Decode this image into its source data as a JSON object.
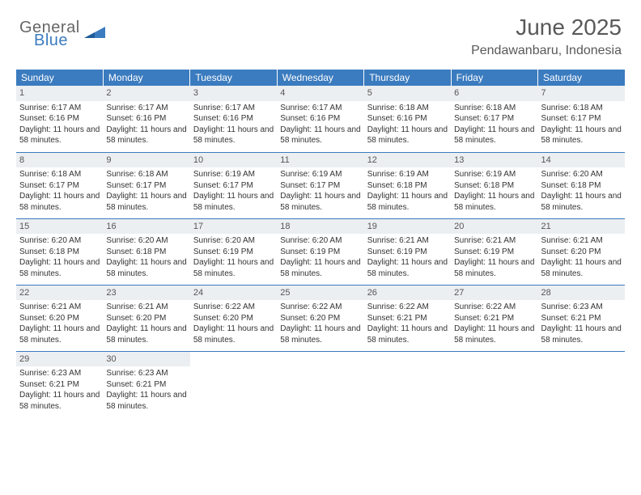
{
  "logo": {
    "general": "General",
    "blue": "Blue"
  },
  "title": "June 2025",
  "location": "Pendawanbaru, Indonesia",
  "colors": {
    "header_bg": "#3b7bbf",
    "header_text": "#ffffff",
    "daynum_bg": "#eceff1",
    "border": "#3b7bbf",
    "text": "#333333",
    "title_text": "#595959"
  },
  "weekdays": [
    "Sunday",
    "Monday",
    "Tuesday",
    "Wednesday",
    "Thursday",
    "Friday",
    "Saturday"
  ],
  "days": [
    {
      "n": 1,
      "sunrise": "6:17 AM",
      "sunset": "6:16 PM",
      "daylight": "11 hours and 58 minutes."
    },
    {
      "n": 2,
      "sunrise": "6:17 AM",
      "sunset": "6:16 PM",
      "daylight": "11 hours and 58 minutes."
    },
    {
      "n": 3,
      "sunrise": "6:17 AM",
      "sunset": "6:16 PM",
      "daylight": "11 hours and 58 minutes."
    },
    {
      "n": 4,
      "sunrise": "6:17 AM",
      "sunset": "6:16 PM",
      "daylight": "11 hours and 58 minutes."
    },
    {
      "n": 5,
      "sunrise": "6:18 AM",
      "sunset": "6:16 PM",
      "daylight": "11 hours and 58 minutes."
    },
    {
      "n": 6,
      "sunrise": "6:18 AM",
      "sunset": "6:17 PM",
      "daylight": "11 hours and 58 minutes."
    },
    {
      "n": 7,
      "sunrise": "6:18 AM",
      "sunset": "6:17 PM",
      "daylight": "11 hours and 58 minutes."
    },
    {
      "n": 8,
      "sunrise": "6:18 AM",
      "sunset": "6:17 PM",
      "daylight": "11 hours and 58 minutes."
    },
    {
      "n": 9,
      "sunrise": "6:18 AM",
      "sunset": "6:17 PM",
      "daylight": "11 hours and 58 minutes."
    },
    {
      "n": 10,
      "sunrise": "6:19 AM",
      "sunset": "6:17 PM",
      "daylight": "11 hours and 58 minutes."
    },
    {
      "n": 11,
      "sunrise": "6:19 AM",
      "sunset": "6:17 PM",
      "daylight": "11 hours and 58 minutes."
    },
    {
      "n": 12,
      "sunrise": "6:19 AM",
      "sunset": "6:18 PM",
      "daylight": "11 hours and 58 minutes."
    },
    {
      "n": 13,
      "sunrise": "6:19 AM",
      "sunset": "6:18 PM",
      "daylight": "11 hours and 58 minutes."
    },
    {
      "n": 14,
      "sunrise": "6:20 AM",
      "sunset": "6:18 PM",
      "daylight": "11 hours and 58 minutes."
    },
    {
      "n": 15,
      "sunrise": "6:20 AM",
      "sunset": "6:18 PM",
      "daylight": "11 hours and 58 minutes."
    },
    {
      "n": 16,
      "sunrise": "6:20 AM",
      "sunset": "6:18 PM",
      "daylight": "11 hours and 58 minutes."
    },
    {
      "n": 17,
      "sunrise": "6:20 AM",
      "sunset": "6:19 PM",
      "daylight": "11 hours and 58 minutes."
    },
    {
      "n": 18,
      "sunrise": "6:20 AM",
      "sunset": "6:19 PM",
      "daylight": "11 hours and 58 minutes."
    },
    {
      "n": 19,
      "sunrise": "6:21 AM",
      "sunset": "6:19 PM",
      "daylight": "11 hours and 58 minutes."
    },
    {
      "n": 20,
      "sunrise": "6:21 AM",
      "sunset": "6:19 PM",
      "daylight": "11 hours and 58 minutes."
    },
    {
      "n": 21,
      "sunrise": "6:21 AM",
      "sunset": "6:20 PM",
      "daylight": "11 hours and 58 minutes."
    },
    {
      "n": 22,
      "sunrise": "6:21 AM",
      "sunset": "6:20 PM",
      "daylight": "11 hours and 58 minutes."
    },
    {
      "n": 23,
      "sunrise": "6:21 AM",
      "sunset": "6:20 PM",
      "daylight": "11 hours and 58 minutes."
    },
    {
      "n": 24,
      "sunrise": "6:22 AM",
      "sunset": "6:20 PM",
      "daylight": "11 hours and 58 minutes."
    },
    {
      "n": 25,
      "sunrise": "6:22 AM",
      "sunset": "6:20 PM",
      "daylight": "11 hours and 58 minutes."
    },
    {
      "n": 26,
      "sunrise": "6:22 AM",
      "sunset": "6:21 PM",
      "daylight": "11 hours and 58 minutes."
    },
    {
      "n": 27,
      "sunrise": "6:22 AM",
      "sunset": "6:21 PM",
      "daylight": "11 hours and 58 minutes."
    },
    {
      "n": 28,
      "sunrise": "6:23 AM",
      "sunset": "6:21 PM",
      "daylight": "11 hours and 58 minutes."
    },
    {
      "n": 29,
      "sunrise": "6:23 AM",
      "sunset": "6:21 PM",
      "daylight": "11 hours and 58 minutes."
    },
    {
      "n": 30,
      "sunrise": "6:23 AM",
      "sunset": "6:21 PM",
      "daylight": "11 hours and 58 minutes."
    }
  ],
  "labels": {
    "sunrise": "Sunrise:",
    "sunset": "Sunset:",
    "daylight": "Daylight:"
  },
  "start_weekday": 0,
  "grid_cells": 35
}
